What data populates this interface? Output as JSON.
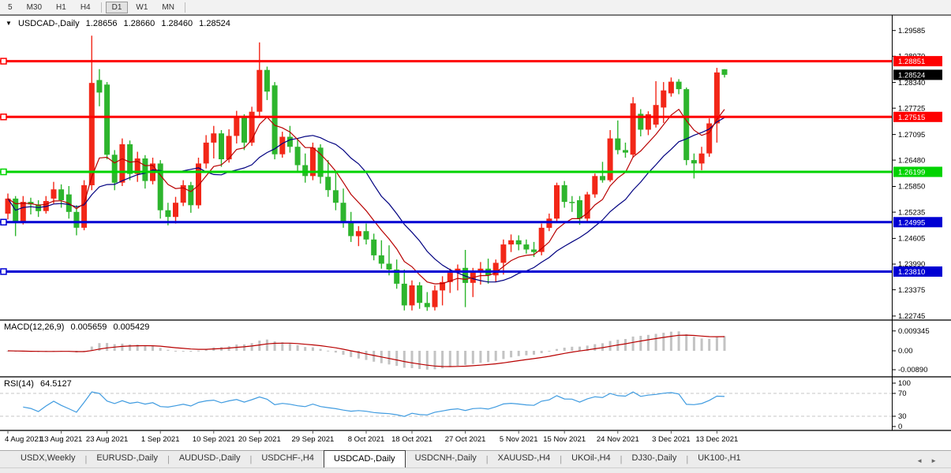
{
  "toolbar": {
    "timeframes": [
      {
        "label": "5",
        "active": false
      },
      {
        "label": "M30",
        "active": false
      },
      {
        "label": "H1",
        "active": false
      },
      {
        "label": "H4",
        "active": false
      },
      {
        "label": "D1",
        "active": true
      },
      {
        "label": "W1",
        "active": false
      },
      {
        "label": "MN",
        "active": false
      }
    ]
  },
  "chart_title": {
    "dropdown_icon": "▼",
    "symbol": "USDCAD-,Daily",
    "open": "1.28656",
    "high": "1.28660",
    "low": "1.28460",
    "close": "1.28524"
  },
  "chart_data": {
    "type": "candlestick",
    "symbol": "USDCAD",
    "timeframe": "Daily",
    "title": "USDCAD-,Daily 1.28656 1.28660 1.28460 1.28524",
    "legend_note": "red candle = up, green candle = down",
    "candles_ohlc": [
      [
        1.252,
        1.2568,
        1.2506,
        1.2556
      ],
      [
        1.2556,
        1.2562,
        1.2466,
        1.25
      ],
      [
        1.25,
        1.2562,
        1.2494,
        1.2548
      ],
      [
        1.2548,
        1.2558,
        1.2518,
        1.2542
      ],
      [
        1.2542,
        1.2552,
        1.2512,
        1.2526
      ],
      [
        1.2526,
        1.2562,
        1.252,
        1.255
      ],
      [
        1.2556,
        1.2596,
        1.2544,
        1.2578
      ],
      [
        1.2578,
        1.259,
        1.2534,
        1.2552
      ],
      [
        1.2566,
        1.2586,
        1.2508,
        1.2524
      ],
      [
        1.2524,
        1.254,
        1.2468,
        1.2486
      ],
      [
        1.2486,
        1.26,
        1.248,
        1.2588
      ],
      [
        1.2588,
        1.2946,
        1.2576,
        1.2833
      ],
      [
        1.284,
        1.2866,
        1.2777,
        1.281
      ],
      [
        1.2829,
        1.2835,
        1.265,
        1.2661
      ],
      [
        1.2661,
        1.2672,
        1.2576,
        1.2594
      ],
      [
        1.2594,
        1.27,
        1.2586,
        1.2686
      ],
      [
        1.2686,
        1.2695,
        1.26,
        1.2615
      ],
      [
        1.2615,
        1.2668,
        1.2596,
        1.2652
      ],
      [
        1.2652,
        1.266,
        1.258,
        1.2598
      ],
      [
        1.2598,
        1.2654,
        1.259,
        1.264
      ],
      [
        1.264,
        1.2648,
        1.2508,
        1.2528
      ],
      [
        1.2528,
        1.2546,
        1.2492,
        1.2512
      ],
      [
        1.2512,
        1.256,
        1.2496,
        1.2546
      ],
      [
        1.2546,
        1.26,
        1.2538,
        1.2588
      ],
      [
        1.2588,
        1.2596,
        1.2522,
        1.254
      ],
      [
        1.254,
        1.2654,
        1.2532,
        1.264
      ],
      [
        1.264,
        1.2708,
        1.2628,
        1.269
      ],
      [
        1.269,
        1.273,
        1.2652,
        1.2712
      ],
      [
        1.2712,
        1.272,
        1.2632,
        1.265
      ],
      [
        1.265,
        1.2722,
        1.2642,
        1.2706
      ],
      [
        1.2706,
        1.2766,
        1.2688,
        1.275
      ],
      [
        1.275,
        1.2758,
        1.2672,
        1.269
      ],
      [
        1.269,
        1.2776,
        1.2682,
        1.2764
      ],
      [
        1.2764,
        1.293,
        1.2754,
        1.2864
      ],
      [
        1.2864,
        1.2872,
        1.2792,
        1.2812
      ],
      [
        1.2827,
        1.2835,
        1.265,
        1.2662
      ],
      [
        1.2662,
        1.2716,
        1.2654,
        1.2704
      ],
      [
        1.2704,
        1.273,
        1.2666,
        1.268
      ],
      [
        1.268,
        1.27,
        1.2618,
        1.2636
      ],
      [
        1.2636,
        1.2664,
        1.2594,
        1.261
      ],
      [
        1.261,
        1.269,
        1.26,
        1.2678
      ],
      [
        1.2678,
        1.2686,
        1.2592,
        1.2608
      ],
      [
        1.2608,
        1.2648,
        1.256,
        1.2576
      ],
      [
        1.2576,
        1.262,
        1.2528,
        1.2546
      ],
      [
        1.2546,
        1.258,
        1.2486,
        1.25
      ],
      [
        1.25,
        1.2524,
        1.2452,
        1.2466
      ],
      [
        1.2466,
        1.249,
        1.2442,
        1.2478
      ],
      [
        1.2478,
        1.2496,
        1.2446,
        1.2458
      ],
      [
        1.2458,
        1.2472,
        1.2408,
        1.242
      ],
      [
        1.242,
        1.2456,
        1.2388,
        1.24
      ],
      [
        1.24,
        1.2444,
        1.2372,
        1.2386
      ],
      [
        1.2386,
        1.241,
        1.234,
        1.2352
      ],
      [
        1.2352,
        1.2386,
        1.2288,
        1.23
      ],
      [
        1.23,
        1.236,
        1.2288,
        1.2348
      ],
      [
        1.2348,
        1.2356,
        1.2292,
        1.2306
      ],
      [
        1.2306,
        1.2332,
        1.2287,
        1.2296
      ],
      [
        1.2296,
        1.2348,
        1.2288,
        1.2336
      ],
      [
        1.2336,
        1.237,
        1.23,
        1.2356
      ],
      [
        1.2356,
        1.2388,
        1.233,
        1.2378
      ],
      [
        1.2378,
        1.2398,
        1.2336,
        1.2388
      ],
      [
        1.239,
        1.2433,
        1.2296,
        1.2354
      ],
      [
        1.2354,
        1.239,
        1.232,
        1.2382
      ],
      [
        1.2382,
        1.2404,
        1.235,
        1.2388
      ],
      [
        1.2388,
        1.2412,
        1.2352,
        1.2372
      ],
      [
        1.2372,
        1.241,
        1.2356,
        1.2402
      ],
      [
        1.2402,
        1.2458,
        1.2374,
        1.2446
      ],
      [
        1.2446,
        1.247,
        1.2428,
        1.2456
      ],
      [
        1.2456,
        1.2468,
        1.2432,
        1.2446
      ],
      [
        1.2446,
        1.2458,
        1.2424,
        1.2434
      ],
      [
        1.2434,
        1.2452,
        1.2416,
        1.2428
      ],
      [
        1.2428,
        1.2496,
        1.242,
        1.2486
      ],
      [
        1.2486,
        1.252,
        1.2478,
        1.2508
      ],
      [
        1.2508,
        1.2594,
        1.2498,
        1.2588
      ],
      [
        1.2588,
        1.2598,
        1.2534,
        1.2548
      ],
      [
        1.2548,
        1.2562,
        1.2524,
        1.2546
      ],
      [
        1.2552,
        1.2562,
        1.2493,
        1.2508
      ],
      [
        1.2508,
        1.2572,
        1.2502,
        1.2566
      ],
      [
        1.2566,
        1.2616,
        1.2558,
        1.261
      ],
      [
        1.261,
        1.2644,
        1.2594,
        1.26
      ],
      [
        1.26,
        1.272,
        1.2596,
        1.27
      ],
      [
        1.27,
        1.2743,
        1.2662,
        1.2672
      ],
      [
        1.2672,
        1.269,
        1.2654,
        1.2666
      ],
      [
        1.2661,
        1.2799,
        1.2654,
        1.2784
      ],
      [
        1.2759,
        1.277,
        1.2705,
        1.2721
      ],
      [
        1.2721,
        1.2765,
        1.2708,
        1.2758
      ],
      [
        1.2733,
        1.2837,
        1.2726,
        1.278
      ],
      [
        1.2774,
        1.2835,
        1.2737,
        1.2815
      ],
      [
        1.2808,
        1.2846,
        1.28,
        1.2836
      ],
      [
        1.2836,
        1.2842,
        1.2806,
        1.2818
      ],
      [
        1.2818,
        1.2822,
        1.2636,
        1.2648
      ],
      [
        1.2648,
        1.2664,
        1.2604,
        1.264
      ],
      [
        1.264,
        1.268,
        1.2624,
        1.2664
      ],
      [
        1.2664,
        1.2748,
        1.2656,
        1.2736
      ],
      [
        1.2736,
        1.2869,
        1.269,
        1.2858
      ],
      [
        1.28656,
        1.2866,
        1.2846,
        1.28524
      ]
    ],
    "x_date_labels": [
      {
        "label": "4 Aug 2021",
        "index": 0
      },
      {
        "label": "13 Aug 2021",
        "index": 7
      },
      {
        "label": "23 Aug 2021",
        "index": 13
      },
      {
        "label": "1 Sep 2021",
        "index": 20
      },
      {
        "label": "10 Sep 2021",
        "index": 27
      },
      {
        "label": "20 Sep 2021",
        "index": 33
      },
      {
        "label": "29 Sep 2021",
        "index": 40
      },
      {
        "label": "8 Oct 2021",
        "index": 47
      },
      {
        "label": "18 Oct 2021",
        "index": 53
      },
      {
        "label": "27 Oct 2021",
        "index": 60
      },
      {
        "label": "5 Nov 2021",
        "index": 67
      },
      {
        "label": "15 Nov 2021",
        "index": 73
      },
      {
        "label": "24 Nov 2021",
        "index": 80
      },
      {
        "label": "3 Dec 2021",
        "index": 87
      },
      {
        "label": "13 Dec 2021",
        "index": 93
      }
    ],
    "y_axis_ticks": [
      {
        "text": "1.29585",
        "value": 1.29585
      },
      {
        "text": "1.28970",
        "value": 1.2897
      },
      {
        "text": "1.28340",
        "value": 1.2834
      },
      {
        "text": "1.27725",
        "value": 1.27725
      },
      {
        "text": "1.27095",
        "value": 1.27095
      },
      {
        "text": "1.26480",
        "value": 1.2648
      },
      {
        "text": "1.25850",
        "value": 1.2585
      },
      {
        "text": "1.25235",
        "value": 1.25235
      },
      {
        "text": "1.24605",
        "value": 1.24605
      },
      {
        "text": "1.23990",
        "value": 1.2399
      },
      {
        "text": "1.23375",
        "value": 1.23375
      },
      {
        "text": "1.22745",
        "value": 1.22745
      }
    ],
    "horizontal_lines": [
      {
        "label": "1.28851",
        "price": 1.28851,
        "color": "#fe0000"
      },
      {
        "label": "1.27515",
        "price": 1.27515,
        "color": "#fe0000"
      },
      {
        "label": "1.26199",
        "price": 1.26199,
        "color": "#00d300"
      },
      {
        "label": "1.24995",
        "price": 1.24995,
        "color": "#0000d3"
      },
      {
        "label": "1.23810",
        "price": 1.2381,
        "color": "#0000d3"
      }
    ],
    "current_price": {
      "label": "1.28524",
      "value": 1.28524,
      "bg": "#000000"
    },
    "candle_colors": {
      "bull": "#f22718",
      "bear": "#2db52d"
    },
    "moving_averages": [
      {
        "name": "fast-ma",
        "color": "#b80000"
      },
      {
        "name": "slow-ma",
        "color": "#000080"
      }
    ],
    "macd": {
      "label": "MACD(12,26,9)",
      "value_main": "0.005659",
      "value_signal": "0.005429",
      "hist_color": "#c3c3c3",
      "signal_color": "#b80000",
      "axis_labels": [
        {
          "text": "0.009345",
          "value": 0.009345
        },
        {
          "text": "0.00",
          "value": 0
        },
        {
          "text": "-0.00890",
          "value": -0.0089
        }
      ]
    },
    "rsi": {
      "label": "RSI(14)",
      "value": "64.5127",
      "line_color": "#3f9be0",
      "axis_labels": [
        {
          "text": "100",
          "value": 100
        },
        {
          "text": "70",
          "value": 70
        },
        {
          "text": "30",
          "value": 30
        },
        {
          "text": "0",
          "value": 0
        }
      ],
      "dashed_levels": [
        70,
        30
      ]
    }
  },
  "tabs": {
    "items": [
      {
        "label": "USDX,Weekly",
        "active": false
      },
      {
        "label": "EURUSD-,Daily",
        "active": false
      },
      {
        "label": "AUDUSD-,Daily",
        "active": false
      },
      {
        "label": "USDCHF-,H4",
        "active": false
      },
      {
        "label": "USDCAD-,Daily",
        "active": true
      },
      {
        "label": "USDCNH-,Daily",
        "active": false
      },
      {
        "label": "XAUUSD-,H4",
        "active": false
      },
      {
        "label": "UKOil-,H4",
        "active": false
      },
      {
        "label": "DJ30-,Daily",
        "active": false
      },
      {
        "label": "UK100-,H1",
        "active": false
      }
    ],
    "scroll_left_icon": "◄",
    "scroll_right_icon": "►"
  }
}
